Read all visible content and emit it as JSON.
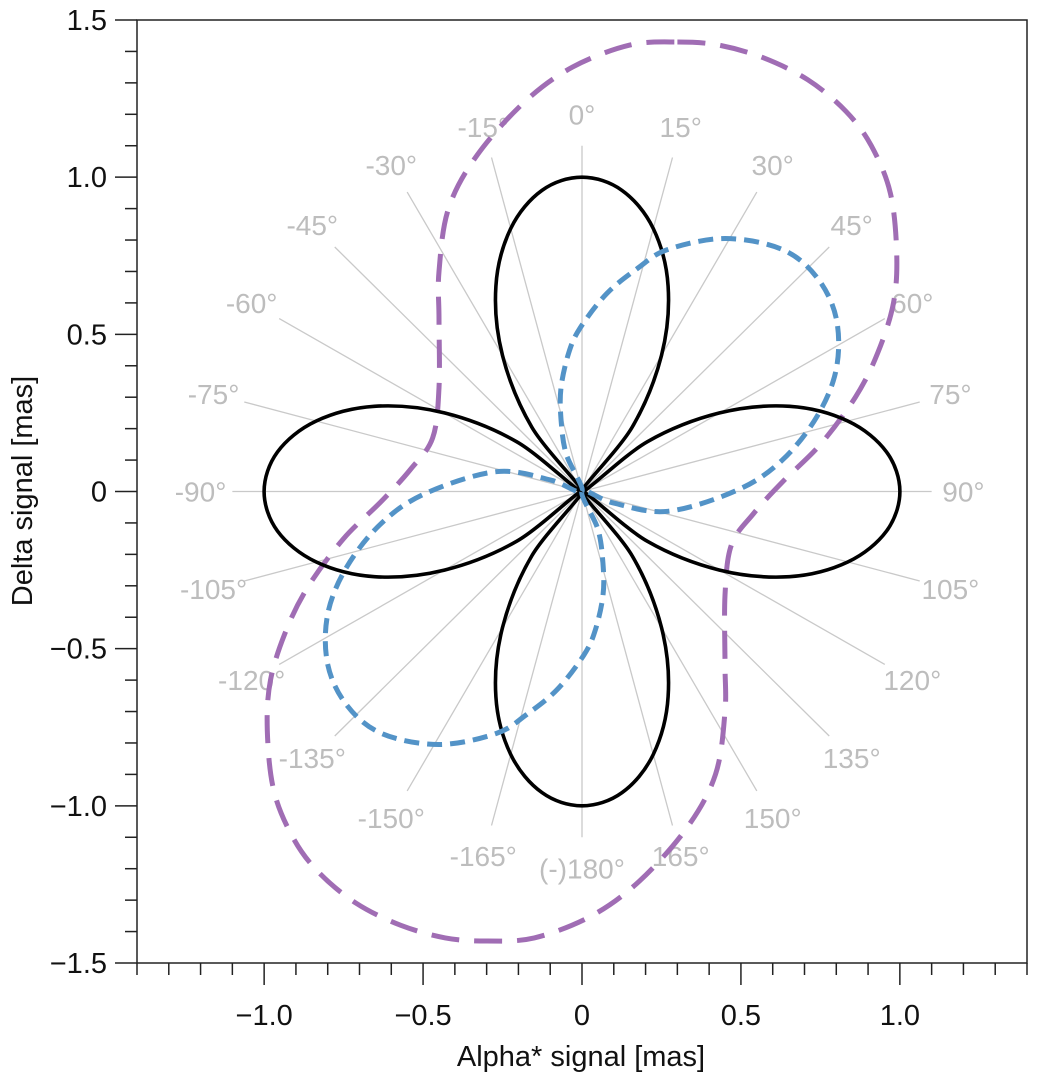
{
  "chart_data": {
    "type": "line",
    "title": "",
    "xlabel": "Alpha* signal [mas]",
    "ylabel": "Delta signal [mas]",
    "xlim": [
      -1.4,
      1.4
    ],
    "ylim": [
      -1.5,
      1.5
    ],
    "grid": false,
    "legend": "none",
    "x_ticks": [
      {
        "value": -1.0,
        "label": "−1.0"
      },
      {
        "value": -0.5,
        "label": "−0.5"
      },
      {
        "value": 0,
        "label": "0"
      },
      {
        "value": 0.5,
        "label": "0.5"
      },
      {
        "value": 1.0,
        "label": "1.0"
      }
    ],
    "y_ticks": [
      {
        "value": 1.5,
        "label": "1.5"
      },
      {
        "value": 1.0,
        "label": "1.0"
      },
      {
        "value": 0.5,
        "label": "0.5"
      },
      {
        "value": 0,
        "label": "0"
      },
      {
        "value": -0.5,
        "label": "−0.5"
      },
      {
        "value": -1.0,
        "label": "−1.0"
      },
      {
        "value": -1.5,
        "label": "−1.5"
      }
    ],
    "minor_tick_step": 0.1,
    "angle_rays": [
      {
        "angle": 0,
        "label": "0°"
      },
      {
        "angle": 15,
        "label": "15°"
      },
      {
        "angle": 30,
        "label": "30°"
      },
      {
        "angle": 45,
        "label": "45°"
      },
      {
        "angle": 60,
        "label": "60°"
      },
      {
        "angle": 75,
        "label": "75°"
      },
      {
        "angle": 90,
        "label": "90°"
      },
      {
        "angle": 105,
        "label": "105°"
      },
      {
        "angle": 120,
        "label": "120°"
      },
      {
        "angle": 135,
        "label": "135°"
      },
      {
        "angle": 150,
        "label": "150°"
      },
      {
        "angle": 165,
        "label": "165°"
      },
      {
        "angle": 180,
        "label": "(-)180°"
      },
      {
        "angle": -165,
        "label": "-165°"
      },
      {
        "angle": -150,
        "label": "-150°"
      },
      {
        "angle": -135,
        "label": "-135°"
      },
      {
        "angle": -120,
        "label": "-120°"
      },
      {
        "angle": -105,
        "label": "-105°"
      },
      {
        "angle": -90,
        "label": "-90°"
      },
      {
        "angle": -75,
        "label": "-75°"
      },
      {
        "angle": -60,
        "label": "-60°"
      },
      {
        "angle": -45,
        "label": "-45°"
      },
      {
        "angle": -30,
        "label": "-30°"
      },
      {
        "angle": -15,
        "label": "-15°"
      }
    ],
    "colors": {
      "ray": "#c9c9c9",
      "angle_label": "#bdbdbd",
      "axis": "#222222"
    },
    "series": [
      {
        "style": "solid",
        "color": "#000000",
        "points": [
          [
            0,
            1
          ],
          [
            0.126,
            0.958
          ],
          [
            0.224,
            0.837
          ],
          [
            0.271,
            0.653
          ],
          [
            0.25,
            0.433
          ],
          [
            0.158,
            0.205
          ],
          [
            0,
            0
          ],
          [
            0.205,
            0.158
          ],
          [
            0.433,
            0.25
          ],
          [
            0.653,
            0.271
          ],
          [
            0.837,
            0.224
          ],
          [
            0.958,
            0.126
          ],
          [
            1,
            0
          ],
          [
            0.958,
            -0.126
          ],
          [
            0.837,
            -0.224
          ],
          [
            0.653,
            -0.271
          ],
          [
            0.433,
            -0.25
          ],
          [
            0.205,
            -0.158
          ],
          [
            0,
            0
          ],
          [
            0.158,
            -0.205
          ],
          [
            0.25,
            -0.433
          ],
          [
            0.271,
            -0.653
          ],
          [
            0.224,
            -0.837
          ],
          [
            0.126,
            -0.958
          ],
          [
            0,
            -1
          ],
          [
            -0.126,
            -0.958
          ],
          [
            -0.224,
            -0.837
          ],
          [
            -0.271,
            -0.653
          ],
          [
            -0.25,
            -0.433
          ],
          [
            -0.158,
            -0.205
          ],
          [
            0,
            0
          ],
          [
            -0.205,
            -0.158
          ],
          [
            -0.433,
            -0.25
          ],
          [
            -0.653,
            -0.271
          ],
          [
            -0.837,
            -0.224
          ],
          [
            -0.958,
            -0.126
          ],
          [
            -1,
            0
          ],
          [
            -0.958,
            0.126
          ],
          [
            -0.837,
            0.224
          ],
          [
            -0.653,
            0.271
          ],
          [
            -0.433,
            0.25
          ],
          [
            -0.205,
            0.158
          ],
          [
            0,
            0
          ],
          [
            -0.158,
            0.205
          ],
          [
            -0.25,
            0.433
          ],
          [
            -0.271,
            0.653
          ],
          [
            -0.224,
            0.837
          ],
          [
            -0.126,
            0.958
          ]
        ]
      },
      {
        "style": "dashed",
        "color": "#5393c7",
        "points": [
          [
            0,
            0
          ],
          [
            -0.05,
            0.12
          ],
          [
            -0.066,
            0.23
          ],
          [
            -0.066,
            0.33
          ],
          [
            -0.042,
            0.44
          ],
          [
            -0.006,
            0.52
          ],
          [
            0.078,
            0.63
          ],
          [
            0.175,
            0.71
          ],
          [
            0.27,
            0.77
          ],
          [
            0.45,
            0.805
          ],
          [
            0.63,
            0.77
          ],
          [
            0.74,
            0.68
          ],
          [
            0.8,
            0.55
          ],
          [
            0.8,
            0.39
          ],
          [
            0.74,
            0.24
          ],
          [
            0.63,
            0.1
          ],
          [
            0.49,
            0.005
          ],
          [
            0.27,
            -0.063
          ],
          [
            0.1,
            -0.037
          ],
          [
            0,
            0
          ],
          [
            0.05,
            -0.12
          ],
          [
            0.066,
            -0.23
          ],
          [
            0.066,
            -0.33
          ],
          [
            0.042,
            -0.44
          ],
          [
            0.006,
            -0.52
          ],
          [
            -0.078,
            -0.63
          ],
          [
            -0.175,
            -0.71
          ],
          [
            -0.27,
            -0.77
          ],
          [
            -0.45,
            -0.805
          ],
          [
            -0.63,
            -0.77
          ],
          [
            -0.74,
            -0.68
          ],
          [
            -0.8,
            -0.55
          ],
          [
            -0.8,
            -0.39
          ],
          [
            -0.74,
            -0.24
          ],
          [
            -0.63,
            -0.1
          ],
          [
            -0.49,
            -0.005
          ],
          [
            -0.27,
            0.063
          ],
          [
            -0.1,
            0.037
          ]
        ]
      },
      {
        "style": "long-dashed",
        "color": "#a06db4",
        "points": [
          [
            0.3,
            1.43
          ],
          [
            0.43,
            1.42
          ],
          [
            0.57,
            1.38
          ],
          [
            0.71,
            1.31
          ],
          [
            0.83,
            1.21
          ],
          [
            0.91,
            1.1
          ],
          [
            0.97,
            0.95
          ],
          [
            0.99,
            0.76
          ],
          [
            0.98,
            0.6
          ],
          [
            0.93,
            0.44
          ],
          [
            0.86,
            0.3
          ],
          [
            0.75,
            0.15
          ],
          [
            0.63,
            0.03
          ],
          [
            0.54,
            -0.07
          ],
          [
            0.47,
            -0.17
          ],
          [
            0.45,
            -0.33
          ],
          [
            0.45,
            -0.55
          ],
          [
            0.45,
            -0.7
          ],
          [
            0.42,
            -0.9
          ],
          [
            0.33,
            -1.07
          ],
          [
            0.18,
            -1.24
          ],
          [
            0.03,
            -1.35
          ],
          [
            -0.15,
            -1.42
          ],
          [
            -0.3,
            -1.43
          ],
          [
            -0.43,
            -1.42
          ],
          [
            -0.57,
            -1.38
          ],
          [
            -0.71,
            -1.31
          ],
          [
            -0.83,
            -1.21
          ],
          [
            -0.91,
            -1.1
          ],
          [
            -0.97,
            -0.95
          ],
          [
            -0.99,
            -0.76
          ],
          [
            -0.98,
            -0.6
          ],
          [
            -0.93,
            -0.44
          ],
          [
            -0.86,
            -0.3
          ],
          [
            -0.75,
            -0.15
          ],
          [
            -0.63,
            -0.03
          ],
          [
            -0.54,
            0.07
          ],
          [
            -0.47,
            0.17
          ],
          [
            -0.45,
            0.33
          ],
          [
            -0.45,
            0.55
          ],
          [
            -0.45,
            0.7
          ],
          [
            -0.42,
            0.9
          ],
          [
            -0.33,
            1.07
          ],
          [
            -0.18,
            1.24
          ],
          [
            -0.03,
            1.35
          ],
          [
            0.15,
            1.42
          ]
        ]
      }
    ]
  }
}
